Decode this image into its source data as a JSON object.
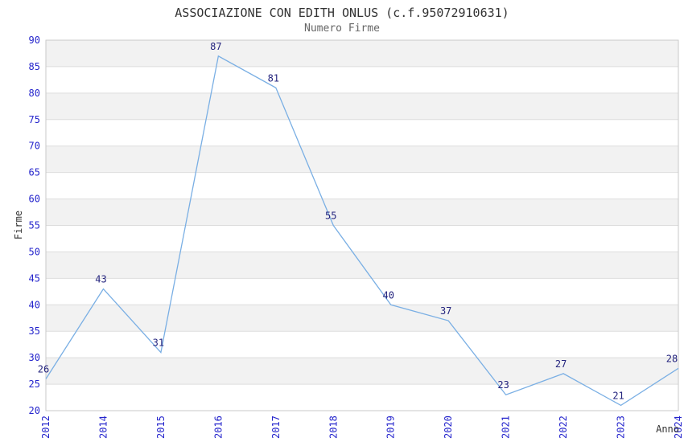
{
  "chart_data": {
    "type": "line",
    "title": "ASSOCIAZIONE CON EDITH ONLUS (c.f.95072910631)",
    "subtitle": "Numero Firme",
    "xlabel": "Anno",
    "ylabel": "Firme",
    "categories": [
      "2012",
      "2014",
      "2015",
      "2016",
      "2017",
      "2018",
      "2019",
      "2020",
      "2021",
      "2022",
      "2023",
      "2024"
    ],
    "values": [
      26,
      43,
      31,
      87,
      81,
      55,
      40,
      37,
      23,
      27,
      21,
      28
    ],
    "point_labels": [
      "26",
      "43",
      "31",
      "87",
      "81",
      "55",
      "40",
      "37",
      "23",
      "27",
      "21",
      "28"
    ],
    "ylim": [
      20,
      90
    ],
    "ytick_step": 5,
    "yticks": [
      20,
      25,
      30,
      35,
      40,
      45,
      50,
      55,
      60,
      65,
      70,
      75,
      80,
      85,
      90
    ],
    "grid": "horizontal",
    "legend": "none",
    "colors": {
      "line": "#7aafe4",
      "tick_labels": "#2424cc",
      "point_labels": "#24247e",
      "band": "#f2f2f2",
      "gridline": "#dddddd",
      "plot_border": "#c9c9c9",
      "title": "#333333",
      "subtitle": "#666666",
      "axis_titles": "#333333",
      "background": "#ffffff"
    }
  }
}
